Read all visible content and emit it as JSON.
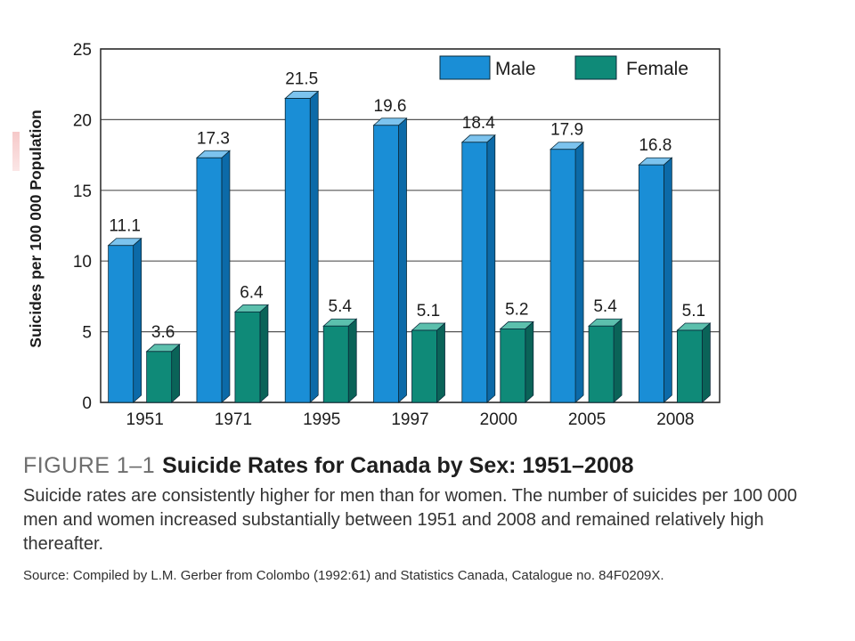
{
  "figure": {
    "label": "FIGURE 1–1",
    "title": "Suicide Rates for Canada by Sex: 1951–2008",
    "description": "Suicide rates are consistently higher for men than for women. The number of suicides per 100 000 men and women increased substantially between 1951 and 2008 and remained relatively high thereafter.",
    "source": "Source: Compiled by L.M. Gerber from Colombo (1992:61) and Statistics Canada, Catalogue no. 84F0209X."
  },
  "chart_data": {
    "type": "bar",
    "categories": [
      "1951",
      "1971",
      "1995",
      "1997",
      "2000",
      "2005",
      "2008"
    ],
    "series": [
      {
        "name": "Male",
        "values": [
          11.1,
          17.3,
          21.5,
          19.6,
          18.4,
          17.9,
          16.8
        ],
        "color": "#1a8ed6",
        "side_color": "#0c6aa8",
        "top_color": "#7cc3ee"
      },
      {
        "name": "Female",
        "values": [
          3.6,
          6.4,
          5.4,
          5.1,
          5.2,
          5.4,
          5.1
        ],
        "color": "#0f8a78",
        "side_color": "#0a6358",
        "top_color": "#5cc0ad"
      }
    ],
    "xlabel": "",
    "ylabel": "Suicides per 100 000 Population",
    "ylim": [
      0,
      25
    ],
    "yticks": [
      0,
      5,
      10,
      15,
      20,
      25
    ],
    "grid": true,
    "legend_position": "top-right",
    "bar_style": "3d",
    "data_labels": true
  }
}
